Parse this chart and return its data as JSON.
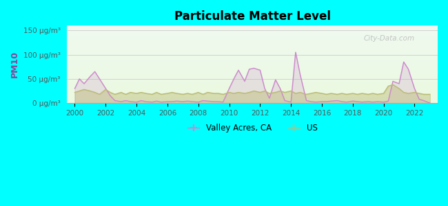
{
  "title": "Particulate Matter Level",
  "ylabel": "PM10",
  "background_color": "#00ffff",
  "valley_color": "#cc88cc",
  "us_color": "#bbbb77",
  "watermark": "City-Data.com",
  "ytick_labels": [
    "0 μg/m³",
    "50 μg/m³",
    "100 μg/m³",
    "150 μg/m³"
  ],
  "ytick_values": [
    0,
    50,
    100,
    150
  ],
  "ylim": [
    0,
    160
  ],
  "xlim": [
    1999.5,
    2023.5
  ],
  "xtick_values": [
    2000,
    2002,
    2004,
    2006,
    2008,
    2010,
    2012,
    2014,
    2016,
    2018,
    2020,
    2022
  ],
  "valley_x": [
    2000.0,
    2000.3,
    2000.6,
    2001.0,
    2001.3,
    2001.6,
    2002.0,
    2002.3,
    2002.6,
    2003.0,
    2003.3,
    2003.6,
    2004.0,
    2004.3,
    2004.6,
    2005.0,
    2005.3,
    2005.6,
    2006.0,
    2006.3,
    2006.6,
    2007.0,
    2007.3,
    2007.6,
    2008.0,
    2008.3,
    2008.6,
    2009.0,
    2009.3,
    2009.6,
    2010.0,
    2010.3,
    2010.6,
    2011.0,
    2011.3,
    2011.6,
    2012.0,
    2012.3,
    2012.6,
    2013.0,
    2013.3,
    2013.6,
    2014.0,
    2014.3,
    2014.6,
    2015.0,
    2015.3,
    2015.6,
    2016.0,
    2016.3,
    2016.6,
    2017.0,
    2017.3,
    2017.6,
    2018.0,
    2018.3,
    2018.6,
    2019.0,
    2019.3,
    2019.6,
    2020.0,
    2020.3,
    2020.6,
    2021.0,
    2021.3,
    2021.6,
    2022.0,
    2022.3,
    2022.6,
    2023.0
  ],
  "valley_y": [
    30,
    50,
    40,
    55,
    65,
    50,
    30,
    15,
    5,
    3,
    5,
    3,
    2,
    5,
    3,
    2,
    4,
    2,
    3,
    3,
    4,
    3,
    4,
    3,
    2,
    5,
    4,
    3,
    3,
    2,
    30,
    50,
    68,
    45,
    70,
    72,
    68,
    30,
    10,
    48,
    30,
    5,
    2,
    105,
    58,
    5,
    3,
    2,
    3,
    3,
    4,
    5,
    3,
    2,
    4,
    3,
    2,
    3,
    2,
    3,
    2,
    4,
    45,
    40,
    85,
    70,
    30,
    8,
    5,
    0
  ],
  "us_x": [
    2000.0,
    2000.3,
    2000.6,
    2001.0,
    2001.3,
    2001.6,
    2002.0,
    2002.3,
    2002.6,
    2003.0,
    2003.3,
    2003.6,
    2004.0,
    2004.3,
    2004.6,
    2005.0,
    2005.3,
    2005.6,
    2006.0,
    2006.3,
    2006.6,
    2007.0,
    2007.3,
    2007.6,
    2008.0,
    2008.3,
    2008.6,
    2009.0,
    2009.3,
    2009.6,
    2010.0,
    2010.3,
    2010.6,
    2011.0,
    2011.3,
    2011.6,
    2012.0,
    2012.3,
    2012.6,
    2013.0,
    2013.3,
    2013.6,
    2014.0,
    2014.3,
    2014.6,
    2015.0,
    2015.3,
    2015.6,
    2016.0,
    2016.3,
    2016.6,
    2017.0,
    2017.3,
    2017.6,
    2018.0,
    2018.3,
    2018.6,
    2019.0,
    2019.3,
    2019.6,
    2020.0,
    2020.3,
    2020.6,
    2021.0,
    2021.3,
    2021.6,
    2022.0,
    2022.3,
    2022.6,
    2023.0
  ],
  "us_y": [
    22,
    25,
    28,
    25,
    22,
    18,
    28,
    22,
    18,
    22,
    18,
    22,
    20,
    22,
    20,
    18,
    22,
    18,
    20,
    22,
    20,
    18,
    20,
    18,
    22,
    18,
    22,
    20,
    20,
    18,
    22,
    20,
    22,
    20,
    22,
    25,
    22,
    25,
    20,
    22,
    25,
    22,
    25,
    20,
    22,
    18,
    20,
    22,
    20,
    18,
    20,
    18,
    20,
    18,
    20,
    18,
    20,
    18,
    20,
    18,
    20,
    35,
    38,
    30,
    22,
    20,
    22,
    20,
    18,
    18
  ]
}
